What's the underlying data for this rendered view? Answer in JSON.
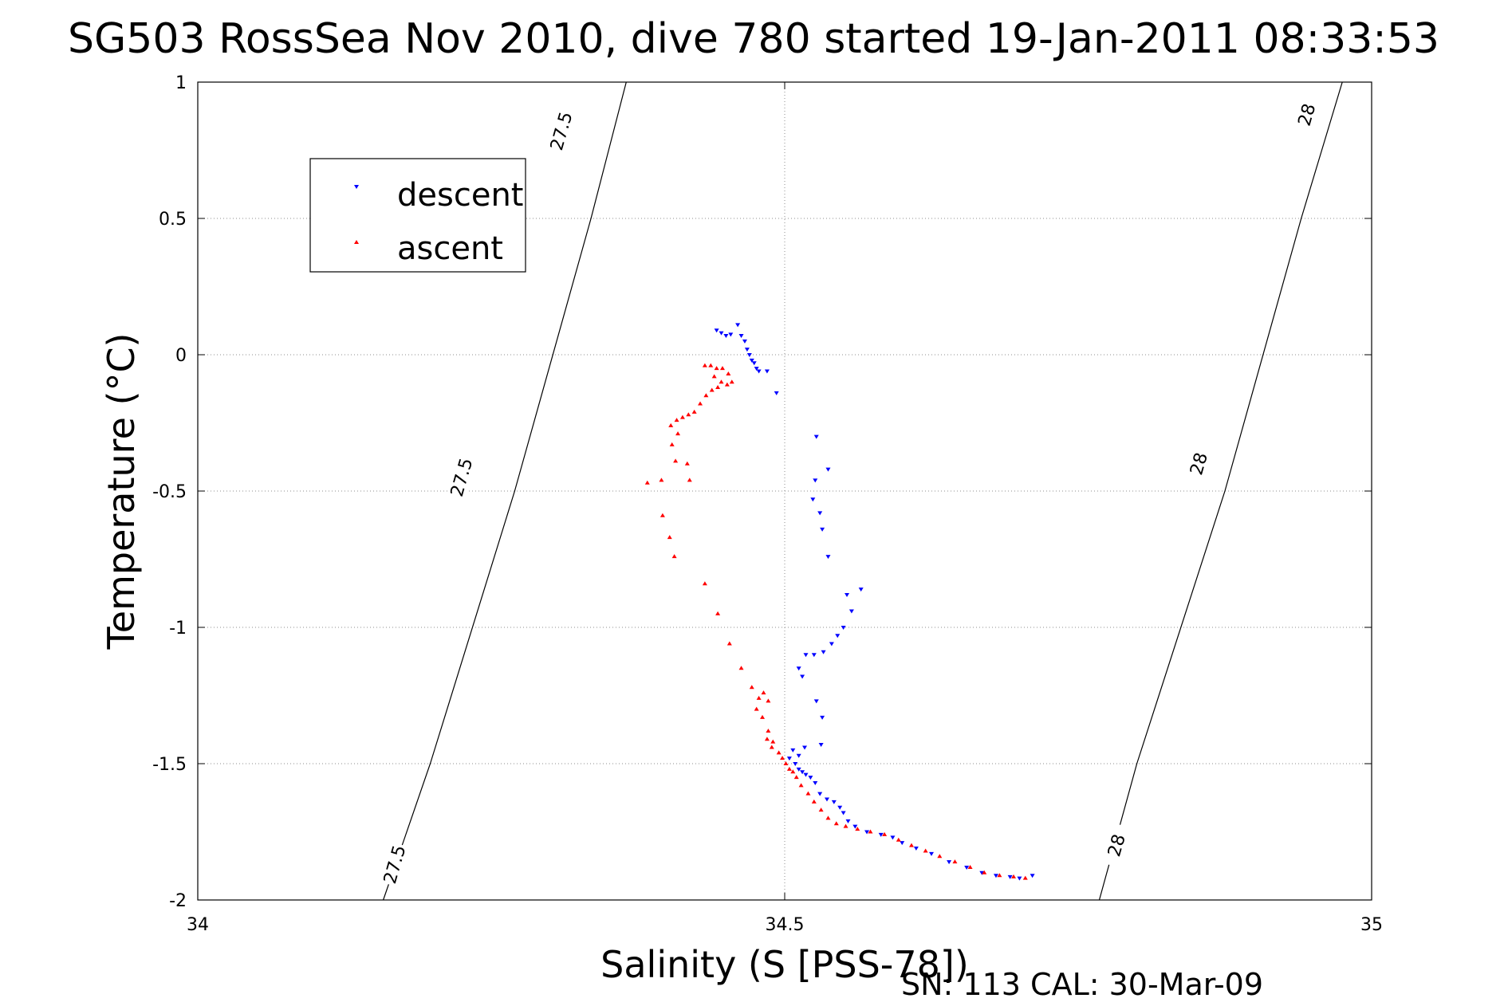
{
  "title": "SG503 RossSea Nov 2010, dive 780 started 19-Jan-2011 08:33:53",
  "footer": "SN: 113  CAL: 30-Mar-09",
  "colors": {
    "descent": "#0000ff",
    "ascent": "#ff0000",
    "grid": "#8c8c8c",
    "axis": "#000000"
  },
  "chart_data": {
    "type": "scatter",
    "title": "SG503 RossSea Nov 2010, dive 780 started 19-Jan-2011 08:33:53",
    "xlabel": "Salinity (S [PSS-78])",
    "ylabel": "Temperature (°C)",
    "xlim": [
      34,
      35
    ],
    "ylim": [
      -2,
      1
    ],
    "xticks": [
      "34",
      "34.5",
      "35"
    ],
    "yticks": [
      "1",
      "0.5",
      "0",
      "-0.5",
      "-1",
      "-1.5",
      "-2"
    ],
    "grid": true,
    "legend": "top-left",
    "series": [
      {
        "name": "descent",
        "marker": "triangle-down",
        "points": [
          [
            34.442,
            0.09
          ],
          [
            34.446,
            0.08
          ],
          [
            34.45,
            0.07
          ],
          [
            34.454,
            0.075
          ],
          [
            34.46,
            0.11
          ],
          [
            34.463,
            0.07
          ],
          [
            34.466,
            0.05
          ],
          [
            34.468,
            0.02
          ],
          [
            34.47,
            0.0
          ],
          [
            34.472,
            -0.02
          ],
          [
            34.474,
            -0.03
          ],
          [
            34.476,
            -0.05
          ],
          [
            34.478,
            -0.06
          ],
          [
            34.485,
            -0.06
          ],
          [
            34.493,
            -0.14
          ],
          [
            34.527,
            -0.3
          ],
          [
            34.537,
            -0.42
          ],
          [
            34.526,
            -0.46
          ],
          [
            34.524,
            -0.53
          ],
          [
            34.53,
            -0.58
          ],
          [
            34.532,
            -0.64
          ],
          [
            34.537,
            -0.74
          ],
          [
            34.553,
            -0.88
          ],
          [
            34.565,
            -0.86
          ],
          [
            34.557,
            -0.94
          ],
          [
            34.55,
            -1.0
          ],
          [
            34.545,
            -1.03
          ],
          [
            34.54,
            -1.06
          ],
          [
            34.533,
            -1.09
          ],
          [
            34.525,
            -1.1
          ],
          [
            34.518,
            -1.1
          ],
          [
            34.512,
            -1.15
          ],
          [
            34.515,
            -1.18
          ],
          [
            34.527,
            -1.27
          ],
          [
            34.532,
            -1.33
          ],
          [
            34.531,
            -1.43
          ],
          [
            34.517,
            -1.44
          ],
          [
            34.512,
            -1.47
          ],
          [
            34.507,
            -1.45
          ],
          [
            34.504,
            -1.48
          ],
          [
            34.509,
            -1.5
          ],
          [
            34.512,
            -1.52
          ],
          [
            34.515,
            -1.53
          ],
          [
            34.518,
            -1.54
          ],
          [
            34.522,
            -1.55
          ],
          [
            34.526,
            -1.57
          ],
          [
            34.53,
            -1.61
          ],
          [
            34.536,
            -1.63
          ],
          [
            34.542,
            -1.64
          ],
          [
            34.547,
            -1.66
          ],
          [
            34.55,
            -1.68
          ],
          [
            34.554,
            -1.71
          ],
          [
            34.56,
            -1.73
          ],
          [
            34.57,
            -1.75
          ],
          [
            34.582,
            -1.76
          ],
          [
            34.592,
            -1.77
          ],
          [
            34.6,
            -1.79
          ],
          [
            34.612,
            -1.81
          ],
          [
            34.625,
            -1.83
          ],
          [
            34.64,
            -1.86
          ],
          [
            34.655,
            -1.88
          ],
          [
            34.668,
            -1.9
          ],
          [
            34.68,
            -1.91
          ],
          [
            34.692,
            -1.915
          ],
          [
            34.7,
            -1.92
          ],
          [
            34.711,
            -1.91
          ]
        ]
      },
      {
        "name": "ascent",
        "marker": "triangle-up",
        "points": [
          [
            34.432,
            -0.04
          ],
          [
            34.437,
            -0.04
          ],
          [
            34.442,
            -0.05
          ],
          [
            34.447,
            -0.05
          ],
          [
            34.452,
            -0.07
          ],
          [
            34.44,
            -0.08
          ],
          [
            34.446,
            -0.1
          ],
          [
            34.451,
            -0.11
          ],
          [
            34.455,
            -0.1
          ],
          [
            34.443,
            -0.12
          ],
          [
            34.438,
            -0.13
          ],
          [
            34.433,
            -0.15
          ],
          [
            34.428,
            -0.18
          ],
          [
            34.423,
            -0.21
          ],
          [
            34.418,
            -0.22
          ],
          [
            34.413,
            -0.23
          ],
          [
            34.408,
            -0.24
          ],
          [
            34.403,
            -0.26
          ],
          [
            34.409,
            -0.29
          ],
          [
            34.404,
            -0.33
          ],
          [
            34.407,
            -0.39
          ],
          [
            34.417,
            -0.4
          ],
          [
            34.395,
            -0.46
          ],
          [
            34.383,
            -0.47
          ],
          [
            34.419,
            -0.46
          ],
          [
            34.396,
            -0.59
          ],
          [
            34.402,
            -0.67
          ],
          [
            34.406,
            -0.74
          ],
          [
            34.432,
            -0.84
          ],
          [
            34.443,
            -0.95
          ],
          [
            34.453,
            -1.06
          ],
          [
            34.463,
            -1.15
          ],
          [
            34.472,
            -1.22
          ],
          [
            34.478,
            -1.26
          ],
          [
            34.482,
            -1.24
          ],
          [
            34.486,
            -1.27
          ],
          [
            34.476,
            -1.3
          ],
          [
            34.481,
            -1.33
          ],
          [
            34.486,
            -1.38
          ],
          [
            34.485,
            -1.41
          ],
          [
            34.489,
            -1.44
          ],
          [
            34.49,
            -1.42
          ],
          [
            34.495,
            -1.46
          ],
          [
            34.498,
            -1.48
          ],
          [
            34.501,
            -1.5
          ],
          [
            34.504,
            -1.52
          ],
          [
            34.507,
            -1.53
          ],
          [
            34.51,
            -1.55
          ],
          [
            34.514,
            -1.58
          ],
          [
            34.52,
            -1.61
          ],
          [
            34.525,
            -1.64
          ],
          [
            34.531,
            -1.67
          ],
          [
            34.537,
            -1.7
          ],
          [
            34.544,
            -1.72
          ],
          [
            34.552,
            -1.73
          ],
          [
            34.562,
            -1.74
          ],
          [
            34.573,
            -1.75
          ],
          [
            34.585,
            -1.76
          ],
          [
            34.597,
            -1.78
          ],
          [
            34.608,
            -1.8
          ],
          [
            34.62,
            -1.82
          ],
          [
            34.632,
            -1.84
          ],
          [
            34.645,
            -1.86
          ],
          [
            34.658,
            -1.88
          ],
          [
            34.67,
            -1.9
          ],
          [
            34.683,
            -1.91
          ],
          [
            34.695,
            -1.915
          ],
          [
            34.705,
            -1.92
          ]
        ]
      }
    ],
    "density_contours": [
      {
        "label": "27.5",
        "points": [
          [
            34.158,
            -2.0
          ],
          [
            34.198,
            -1.5
          ],
          [
            34.27,
            -0.5
          ],
          [
            34.335,
            0.5
          ],
          [
            34.365,
            1.0
          ]
        ]
      },
      {
        "label": "28",
        "points": [
          [
            34.768,
            -2.0
          ],
          [
            34.8,
            -1.5
          ],
          [
            34.875,
            -0.5
          ],
          [
            34.94,
            0.5
          ],
          [
            34.975,
            1.0
          ]
        ]
      }
    ],
    "contour_labels": [
      {
        "text": "27.5",
        "at": [
          34.168,
          -1.87
        ]
      },
      {
        "text": "27.5",
        "at": [
          34.225,
          -0.45
        ]
      },
      {
        "text": "27.5",
        "at": [
          34.31,
          0.82
        ]
      },
      {
        "text": "28",
        "at": [
          34.783,
          -1.8
        ]
      },
      {
        "text": "28",
        "at": [
          34.853,
          -0.4
        ]
      },
      {
        "text": "28",
        "at": [
          34.945,
          0.88
        ]
      }
    ]
  }
}
